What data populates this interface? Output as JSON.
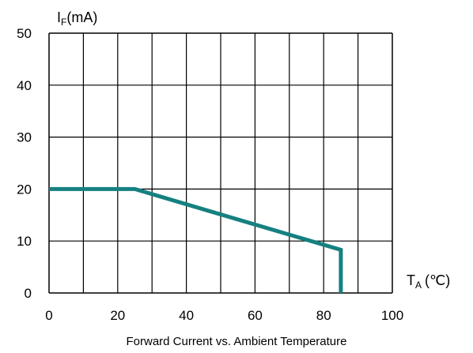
{
  "chart_data": {
    "type": "line",
    "title": "Forward Current vs. Ambient Temperature",
    "y_label": {
      "main": "I",
      "sub": "F",
      "unit": "(mA)"
    },
    "x_label": {
      "main": "T",
      "sub": "A",
      "unit": "(℃)"
    },
    "xlim": [
      0,
      100
    ],
    "ylim": [
      0,
      50
    ],
    "x_ticks": [
      0,
      20,
      40,
      60,
      80,
      100
    ],
    "y_ticks": [
      0,
      10,
      20,
      30,
      40,
      50
    ],
    "grid": true,
    "series": [
      {
        "color": "#168080",
        "points": [
          [
            0,
            20
          ],
          [
            25,
            20
          ],
          [
            85,
            8.3
          ],
          [
            85,
            0
          ]
        ]
      }
    ]
  }
}
